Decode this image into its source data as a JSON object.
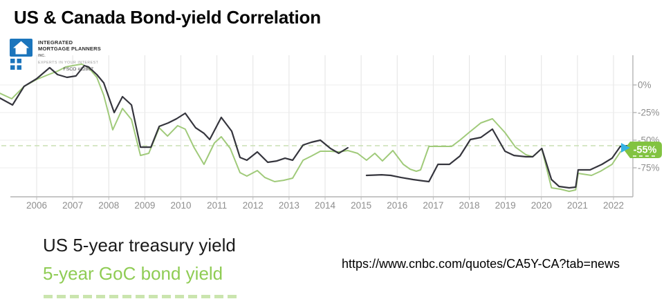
{
  "title": "US & Canada Bond-yield Correlation",
  "logo": {
    "line1": "INTEGRATED",
    "line2": "MORTGAGE PLANNERS",
    "line2_suffix": "INC.",
    "tagline": "EXPERTS IN YOUR INTEREST",
    "license": "FSCO #12867"
  },
  "legend": {
    "items": [
      {
        "label": "US 5-year treasury yield",
        "color": "#1b1b1b"
      },
      {
        "label": "5-year GoC bond yield",
        "color": "#8fcc54"
      }
    ]
  },
  "source_url": "https://www.cnbc.com/quotes/CA5Y-CA?tab=news",
  "badge": {
    "label": "-55%"
  },
  "colors": {
    "us_line": "#35353d",
    "ca_line": "#a0ca7a",
    "badge": "#82c341",
    "arrow": "#35b2e5",
    "dashed": "#c8dfb2",
    "logo_blue": "#1b75bc",
    "gridline": "#e3e3e3",
    "axis": "#b4b4b4",
    "tick_label": "#8e8e8e"
  },
  "chart_data": {
    "type": "line",
    "title": "US & Canada Bond-yield Correlation",
    "xlabel": "",
    "ylabel": "",
    "xlim": [
      2004.97,
      2022.55
    ],
    "ylim": [
      -101,
      27
    ],
    "grid": true,
    "legend_position": "bottom-left",
    "x_ticks": [
      2006,
      2007,
      2008,
      2009,
      2010,
      2011,
      2012,
      2013,
      2014,
      2015,
      2016,
      2017,
      2018,
      2019,
      2020,
      2021,
      2022
    ],
    "y_ticks": [
      {
        "label": "0%",
        "value": 0
      },
      {
        "label": "-25%",
        "value": -25
      },
      {
        "label": "-50%",
        "value": -50
      },
      {
        "label": "-75%",
        "value": -75
      }
    ],
    "reference_line": {
      "value": -55,
      "style": "dashed",
      "label": "-55%"
    },
    "series": [
      {
        "id": "ca",
        "name": "5-year GoC bond yield",
        "color": "#a0ca7a",
        "width": 2,
        "segments": [
          [
            [
              2004.98,
              -7.5
            ],
            [
              2005.31,
              -12.5
            ],
            [
              2005.65,
              -1.3
            ],
            [
              2006.0,
              5
            ],
            [
              2006.33,
              9.4
            ],
            [
              2006.58,
              12.5
            ],
            [
              2006.81,
              16.3
            ],
            [
              2007.0,
              17.5
            ],
            [
              2007.25,
              18.8
            ],
            [
              2007.44,
              15.6
            ],
            [
              2007.67,
              6.9
            ],
            [
              2007.86,
              -9.4
            ],
            [
              2008.11,
              -40.6
            ],
            [
              2008.38,
              -21.3
            ],
            [
              2008.63,
              -31.3
            ],
            [
              2008.88,
              -63.8
            ],
            [
              2009.11,
              -61.9
            ],
            [
              2009.4,
              -38.8
            ],
            [
              2009.63,
              -46.3
            ],
            [
              2009.91,
              -36.9
            ],
            [
              2010.12,
              -40
            ],
            [
              2010.36,
              -56.3
            ],
            [
              2010.64,
              -71.9
            ],
            [
              2010.93,
              -52.5
            ],
            [
              2011.12,
              -46.9
            ],
            [
              2011.37,
              -57.5
            ],
            [
              2011.64,
              -79.4
            ],
            [
              2011.83,
              -82.5
            ],
            [
              2012.12,
              -77.5
            ],
            [
              2012.33,
              -83.8
            ],
            [
              2012.6,
              -87.5
            ],
            [
              2012.85,
              -86.3
            ],
            [
              2013.1,
              -84.4
            ],
            [
              2013.39,
              -68.1
            ],
            [
              2013.62,
              -64.4
            ],
            [
              2013.87,
              -60
            ],
            [
              2014.15,
              -60
            ],
            [
              2014.38,
              -60.6
            ],
            [
              2014.63,
              -59.4
            ],
            [
              2014.9,
              -61.9
            ],
            [
              2015.15,
              -68.1
            ],
            [
              2015.38,
              -61.9
            ],
            [
              2015.59,
              -68.8
            ],
            [
              2015.88,
              -59.4
            ],
            [
              2016.17,
              -71.9
            ],
            [
              2016.36,
              -76.3
            ],
            [
              2016.53,
              -78.1
            ],
            [
              2016.65,
              -76.9
            ],
            [
              2016.88,
              -55.6
            ],
            [
              2017.13,
              -55.6
            ],
            [
              2017.51,
              -55.6
            ],
            [
              2017.74,
              -50
            ],
            [
              2017.99,
              -43.1
            ],
            [
              2018.32,
              -34.4
            ],
            [
              2018.64,
              -30.6
            ],
            [
              2018.99,
              -43.1
            ],
            [
              2019.28,
              -56.3
            ],
            [
              2019.57,
              -63.1
            ],
            [
              2019.76,
              -65
            ],
            [
              2020.01,
              -57.5
            ],
            [
              2020.28,
              -93.1
            ],
            [
              2020.53,
              -94.4
            ],
            [
              2020.77,
              -96.3
            ],
            [
              2020.95,
              -95
            ],
            [
              2021.02,
              -80
            ],
            [
              2021.14,
              -80.6
            ],
            [
              2021.39,
              -81.9
            ],
            [
              2021.64,
              -78.1
            ],
            [
              2021.96,
              -71.9
            ],
            [
              2022.19,
              -60.6
            ],
            [
              2022.4,
              -56.3
            ]
          ]
        ]
      },
      {
        "id": "us",
        "name": "US 5-year treasury yield",
        "color": "#35353d",
        "width": 2.2,
        "segments": [
          [
            [
              2004.98,
              -11.9
            ],
            [
              2005.33,
              -18.1
            ],
            [
              2005.65,
              -1.3
            ],
            [
              2006.0,
              5.6
            ],
            [
              2006.36,
              15.6
            ],
            [
              2006.58,
              9.4
            ],
            [
              2006.84,
              6.9
            ],
            [
              2007.09,
              8.1
            ],
            [
              2007.32,
              17.5
            ],
            [
              2007.44,
              16.3
            ],
            [
              2007.67,
              9.4
            ],
            [
              2007.86,
              1.9
            ],
            [
              2008.15,
              -25
            ],
            [
              2008.38,
              -10.6
            ],
            [
              2008.63,
              -18.1
            ],
            [
              2008.88,
              -56.3
            ],
            [
              2009.17,
              -56.3
            ],
            [
              2009.4,
              -37.5
            ],
            [
              2009.65,
              -34.4
            ],
            [
              2009.88,
              -30.6
            ],
            [
              2010.12,
              -25.6
            ],
            [
              2010.41,
              -38.8
            ],
            [
              2010.64,
              -43.8
            ],
            [
              2010.8,
              -49.4
            ],
            [
              2011.12,
              -29.4
            ],
            [
              2011.41,
              -41.9
            ],
            [
              2011.64,
              -65.6
            ],
            [
              2011.83,
              -68.1
            ],
            [
              2012.12,
              -60.6
            ],
            [
              2012.41,
              -70
            ],
            [
              2012.66,
              -68.8
            ],
            [
              2012.89,
              -66.3
            ],
            [
              2013.1,
              -68.1
            ],
            [
              2013.39,
              -54.4
            ],
            [
              2013.62,
              -51.9
            ],
            [
              2013.87,
              -50
            ],
            [
              2014.15,
              -57.5
            ],
            [
              2014.38,
              -61.9
            ],
            [
              2014.63,
              -56.9
            ]
          ],
          [
            [
              2015.15,
              -81.9
            ],
            [
              2015.57,
              -81.3
            ],
            [
              2015.82,
              -81.9
            ],
            [
              2016.11,
              -83.8
            ],
            [
              2016.44,
              -85.6
            ],
            [
              2016.72,
              -86.9
            ],
            [
              2016.88,
              -87.5
            ],
            [
              2017.13,
              -71.9
            ],
            [
              2017.45,
              -71.9
            ],
            [
              2017.74,
              -64.4
            ],
            [
              2018.03,
              -49.4
            ],
            [
              2018.32,
              -47.5
            ],
            [
              2018.64,
              -40
            ],
            [
              2018.99,
              -60
            ],
            [
              2019.24,
              -63.8
            ],
            [
              2019.57,
              -65
            ],
            [
              2019.76,
              -65
            ],
            [
              2020.01,
              -57.5
            ],
            [
              2020.28,
              -85.6
            ],
            [
              2020.49,
              -91.9
            ],
            [
              2020.77,
              -93.1
            ],
            [
              2020.95,
              -92.5
            ],
            [
              2021.02,
              -76.9
            ],
            [
              2021.35,
              -76.9
            ],
            [
              2021.68,
              -71.9
            ],
            [
              2021.96,
              -66.3
            ],
            [
              2022.19,
              -55.6
            ],
            [
              2022.4,
              -55
            ]
          ]
        ]
      }
    ]
  }
}
